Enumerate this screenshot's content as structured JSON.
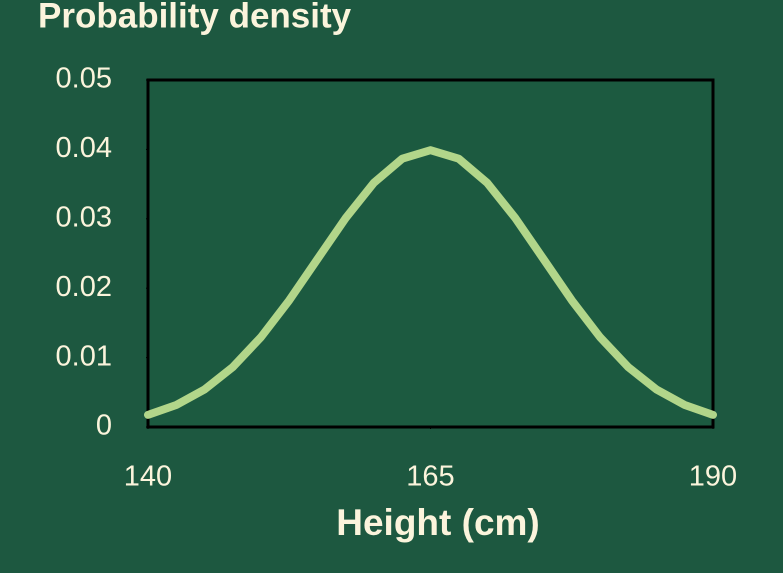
{
  "chart_data": {
    "type": "line",
    "title": "Probability density",
    "x_label": "Height (cm)",
    "x": [
      140,
      142.5,
      145,
      147.5,
      150,
      152.5,
      155,
      157.5,
      160,
      162.5,
      165,
      167.5,
      170,
      172.5,
      175,
      177.5,
      180,
      182.5,
      185,
      187.5,
      190
    ],
    "values": [
      0.00175,
      0.00317,
      0.0054,
      0.00863,
      0.01295,
      0.01826,
      0.0242,
      0.03011,
      0.03521,
      0.03866,
      0.03989,
      0.03866,
      0.03521,
      0.03011,
      0.0242,
      0.01826,
      0.01295,
      0.00863,
      0.0054,
      0.00317,
      0.00175
    ],
    "color": "#b2d68a",
    "xlim": [
      140,
      190
    ],
    "xticks": [
      140,
      165,
      190
    ],
    "ylim": [
      0,
      0.05
    ],
    "yticks": [
      0,
      0.01,
      0.02,
      0.03,
      0.04,
      0.05
    ]
  }
}
